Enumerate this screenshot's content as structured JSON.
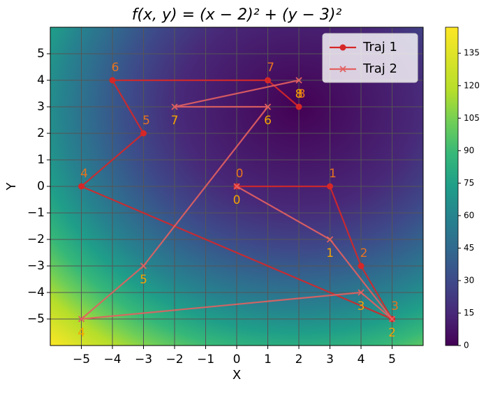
{
  "chart_data": {
    "type": "line",
    "title": "f(x, y) = (x − 2)² + (y − 3)²",
    "x_label": "X",
    "y_label": "Y",
    "xlim": [
      -6,
      6
    ],
    "ylim": [
      -6,
      6
    ],
    "xticks": [
      {
        "value": -5,
        "label": "−5"
      },
      {
        "value": -4,
        "label": "−4"
      },
      {
        "value": -3,
        "label": "−3"
      },
      {
        "value": -2,
        "label": "−2"
      },
      {
        "value": -1,
        "label": "−1"
      },
      0,
      1,
      2,
      3,
      4,
      5
    ],
    "yticks": [
      {
        "value": -5,
        "label": "−5"
      },
      {
        "value": -4,
        "label": "−4"
      },
      {
        "value": -3,
        "label": "−3"
      },
      {
        "value": -2,
        "label": "−2"
      },
      {
        "value": -1,
        "label": "−1"
      },
      0,
      1,
      2,
      3,
      4,
      5
    ],
    "grid": true,
    "legend": "upper right",
    "colorbar_lim": [
      0,
      147
    ],
    "colorbar_ticks": [
      0,
      15,
      30,
      45,
      60,
      75,
      90,
      105,
      120,
      135
    ],
    "series": [
      {
        "name": "Traj 1",
        "color": "#d62728",
        "marker": "circle",
        "label_color": "#e8731e",
        "x": [
          0,
          3,
          4,
          5,
          -5,
          -3,
          -4,
          1,
          2
        ],
        "values": [
          0,
          0,
          -3,
          -5,
          0,
          2,
          4,
          4,
          3
        ],
        "point_labels": [
          0,
          1,
          2,
          3,
          4,
          5,
          6,
          7,
          8
        ]
      },
      {
        "name": "Traj 2",
        "color": "#e36060",
        "marker": "x",
        "label_color": "#f5a300",
        "x": [
          0,
          3,
          5,
          4,
          -5,
          -3,
          1,
          -2,
          2
        ],
        "values": [
          0,
          -2,
          -5,
          -4,
          -5,
          -3,
          3,
          3,
          4
        ],
        "point_labels": [
          0,
          1,
          2,
          3,
          4,
          5,
          6,
          7,
          8
        ]
      }
    ]
  }
}
